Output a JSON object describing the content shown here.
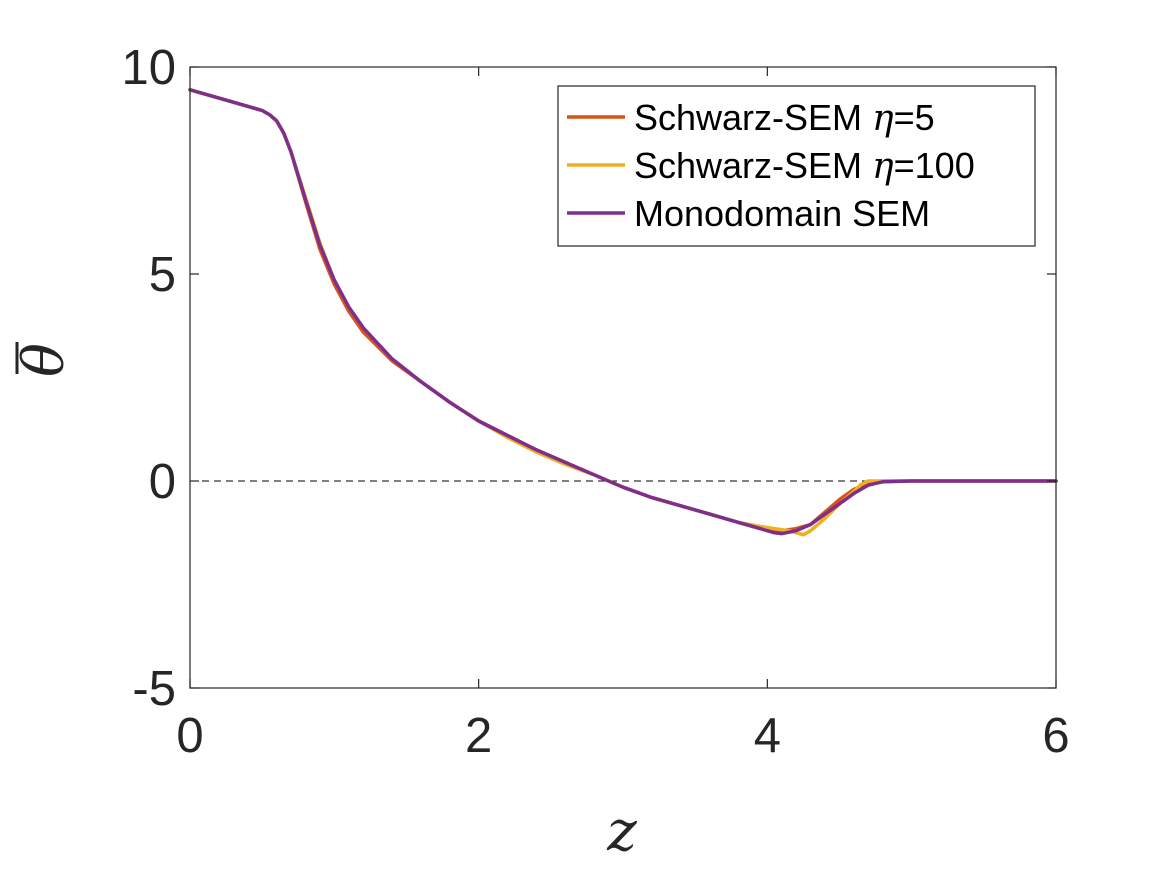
{
  "chart_data": {
    "type": "line",
    "title": "",
    "xlabel": "z",
    "ylabel": "θ",
    "ylabel_overbar": true,
    "xlim": [
      0,
      6
    ],
    "ylim": [
      -5,
      10
    ],
    "xticks": [
      0,
      2,
      4,
      6
    ],
    "xtick_labels": [
      "0",
      "2",
      "4",
      "6"
    ],
    "yticks": [
      -5,
      0,
      5,
      10
    ],
    "ytick_labels": [
      "-5",
      "0",
      "5",
      "10"
    ],
    "grid": false,
    "legend_position": "top-right",
    "reference_line": {
      "y": 0,
      "style": "dashed",
      "color": "#000000"
    },
    "series": [
      {
        "name": "Schwarz-SEM",
        "legend_greek": "η",
        "legend_suffix": "=5",
        "color": "#D95319",
        "x": [
          0,
          0.2,
          0.4,
          0.5,
          0.55,
          0.6,
          0.65,
          0.7,
          0.8,
          0.9,
          1.0,
          1.1,
          1.2,
          1.4,
          1.6,
          1.8,
          2.0,
          2.2,
          2.4,
          2.6,
          2.8,
          3.0,
          3.2,
          3.4,
          3.6,
          3.8,
          3.95,
          4.05,
          4.1,
          4.2,
          4.3,
          4.4,
          4.5,
          4.6,
          4.7,
          4.8,
          5.0,
          5.5,
          6.0
        ],
        "y": [
          9.45,
          9.25,
          9.05,
          8.95,
          8.85,
          8.7,
          8.4,
          7.95,
          6.75,
          5.6,
          4.75,
          4.1,
          3.6,
          2.9,
          2.4,
          1.9,
          1.45,
          1.1,
          0.75,
          0.45,
          0.15,
          -0.15,
          -0.4,
          -0.6,
          -0.8,
          -1.0,
          -1.15,
          -1.2,
          -1.2,
          -1.15,
          -1.05,
          -0.75,
          -0.45,
          -0.2,
          -0.05,
          0.0,
          0.0,
          0.0,
          0.0
        ]
      },
      {
        "name": "Schwarz-SEM",
        "legend_greek": "η",
        "legend_suffix": "=100",
        "color": "#EDB120",
        "x": [
          0,
          0.2,
          0.4,
          0.5,
          0.55,
          0.6,
          0.65,
          0.7,
          0.8,
          0.9,
          1.0,
          1.1,
          1.2,
          1.4,
          1.6,
          1.8,
          2.0,
          2.2,
          2.4,
          2.6,
          2.8,
          3.0,
          3.2,
          3.4,
          3.6,
          3.8,
          3.95,
          4.05,
          4.15,
          4.25,
          4.3,
          4.4,
          4.5,
          4.6,
          4.65,
          4.7,
          4.8,
          5.0,
          5.5,
          6.0
        ],
        "y": [
          9.45,
          9.25,
          9.05,
          8.95,
          8.85,
          8.7,
          8.4,
          7.95,
          6.85,
          5.75,
          4.85,
          4.2,
          3.7,
          2.95,
          2.4,
          1.9,
          1.45,
          1.05,
          0.7,
          0.4,
          0.15,
          -0.15,
          -0.4,
          -0.6,
          -0.8,
          -1.0,
          -1.1,
          -1.15,
          -1.2,
          -1.3,
          -1.2,
          -0.9,
          -0.55,
          -0.25,
          -0.08,
          0.0,
          0.0,
          0.0,
          0.0,
          0.0
        ]
      },
      {
        "name": "Monodomain SEM",
        "color": "#7E2F8E",
        "x": [
          0,
          0.2,
          0.4,
          0.5,
          0.55,
          0.6,
          0.65,
          0.7,
          0.8,
          0.9,
          1.0,
          1.1,
          1.2,
          1.4,
          1.6,
          1.8,
          2.0,
          2.2,
          2.4,
          2.6,
          2.8,
          3.0,
          3.2,
          3.4,
          3.6,
          3.8,
          3.95,
          4.05,
          4.1,
          4.2,
          4.3,
          4.4,
          4.5,
          4.6,
          4.7,
          4.8,
          5.0,
          5.5,
          6.0
        ],
        "y": [
          9.45,
          9.25,
          9.05,
          8.95,
          8.85,
          8.7,
          8.4,
          7.95,
          6.8,
          5.7,
          4.85,
          4.2,
          3.7,
          2.95,
          2.4,
          1.9,
          1.45,
          1.1,
          0.75,
          0.45,
          0.15,
          -0.15,
          -0.4,
          -0.6,
          -0.8,
          -1.0,
          -1.15,
          -1.25,
          -1.27,
          -1.2,
          -1.05,
          -0.8,
          -0.55,
          -0.3,
          -0.1,
          -0.02,
          0.0,
          0.0,
          0.0
        ]
      }
    ]
  }
}
